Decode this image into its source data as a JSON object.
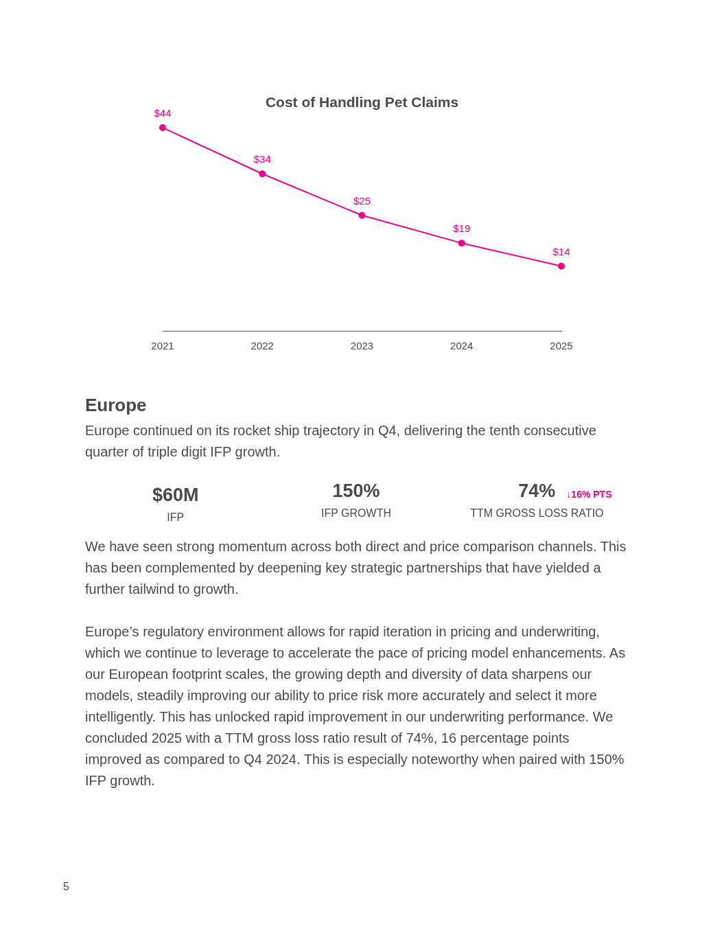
{
  "chart_data": [
    {
      "type": "line",
      "title": "Cost of Handling Pet Claims",
      "categories": [
        "2021",
        "2022",
        "2023",
        "2024",
        "2025"
      ],
      "series": [
        {
          "color": "#ec008c",
          "values": [
            44,
            34,
            25,
            19,
            14
          ],
          "value_labels": [
            "$44",
            "$34",
            "$25",
            "$19",
            "$14"
          ]
        }
      ],
      "tick_labels": "x",
      "grid": false,
      "legend": false,
      "marker": "circle",
      "line_style": "solid"
    },
    {
      "type": "other",
      "title": "Europe",
      "categories": [
        "IFP",
        "IFP GROWTH",
        "TTM GROSS LOSS RATIO"
      ],
      "value_labels": [
        "$60M",
        "150%",
        "74%"
      ],
      "annotations": [
        "Europe continued on its rocket ship trajectory in Q4, delivering the tenth consecutive quarter of triple digit IFP growth.",
        "↓16% PTS",
        "We have seen strong momentum across both direct and price comparison channels. This has been complemented by deepening key strategic partnerships that have yielded a further tailwind to growth.",
        "Europe’s regulatory environment allows for rapid iteration in pricing and underwriting, which we continue to leverage to accelerate the pace of pricing model enhancements. As our European footprint scales, the growing depth and diversity of data sharpens our models, steadily improving our ability to price risk more accurately and select it more intelligently. This has unlocked rapid improvement in our underwriting performance. We concluded 2025 with a TTM gross loss ratio result of 74%, 16 percentage points improved as compared to Q4 2024. This is especially noteworthy when paired with 150% IFP growth.",
        "5"
      ]
    }
  ]
}
